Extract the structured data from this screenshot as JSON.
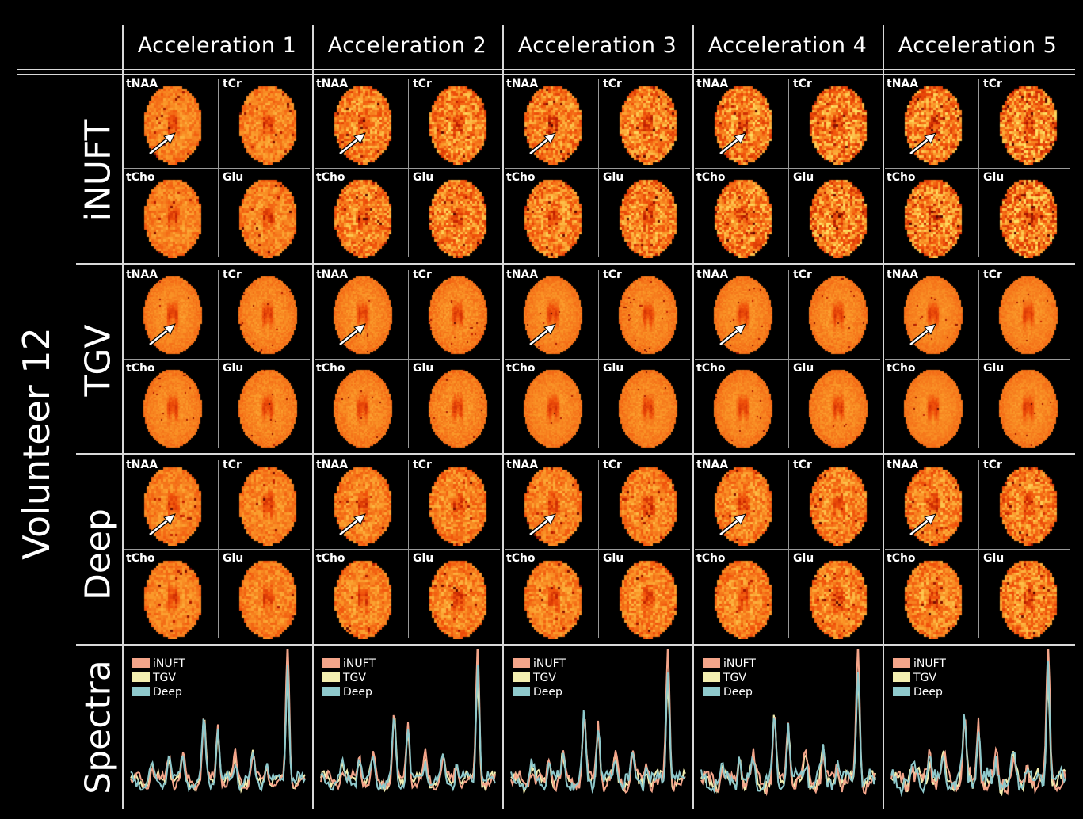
{
  "volunteer_label": "Volunteer 12",
  "columns": [
    "Acceleration 1",
    "Acceleration 2",
    "Acceleration 3",
    "Acceleration 4",
    "Acceleration 5"
  ],
  "rows": [
    "iNUFT",
    "TGV",
    "Deep",
    "Spectra"
  ],
  "metabolites": [
    "tNAA",
    "tCr",
    "tCho",
    "Glu"
  ],
  "legend": [
    "iNUFT",
    "TGV",
    "Deep"
  ],
  "colors": {
    "background": "#000000",
    "grid_line": "#d8d8d8",
    "inuft": "#f4a58a",
    "tgv": "#f3efb0",
    "deep": "#8ec9cc",
    "map_low": "#8a0c00",
    "map_mid": "#f04800",
    "map_high": "#ffe060"
  },
  "icons": [
    "arrow-annotation-icon"
  ]
}
